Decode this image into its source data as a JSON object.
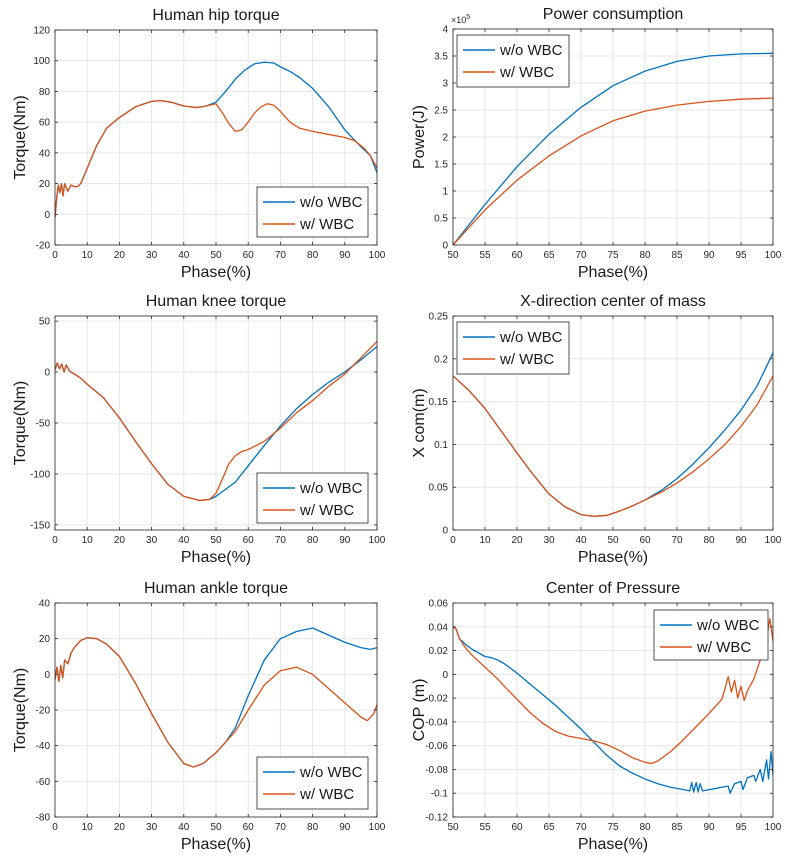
{
  "colors": {
    "wo": "#0072BD",
    "w": "#D95319",
    "grid": "#e6e6e6",
    "axis": "#262626"
  },
  "chart_data": [
    {
      "type": "line",
      "title": "Human hip torque",
      "xlabel": "Phase(%)",
      "ylabel": "Torque(Nm)",
      "xlim": [
        0,
        100
      ],
      "ylim": [
        -20,
        120
      ],
      "xticks": [
        0,
        10,
        20,
        30,
        40,
        50,
        60,
        70,
        80,
        90,
        100
      ],
      "yticks": [
        -20,
        0,
        20,
        40,
        60,
        80,
        100,
        120
      ],
      "legend_pos": "bottom-right",
      "series": [
        {
          "name": "w/o WBC",
          "key": "wo",
          "x": [
            0,
            0.5,
            1,
            1.5,
            2,
            2.5,
            3,
            4,
            5,
            6,
            7,
            8,
            10,
            13,
            16,
            20,
            25,
            30,
            33,
            36,
            40,
            44,
            47,
            50,
            53,
            56,
            59,
            62,
            65,
            68,
            70,
            73,
            76,
            80,
            85,
            90,
            95,
            98,
            100
          ],
          "y": [
            -2,
            10,
            19,
            14,
            20,
            12,
            20,
            15,
            19,
            18,
            18,
            20,
            30,
            45,
            56,
            63,
            70,
            73.5,
            74,
            73,
            70.5,
            69.5,
            70.5,
            73,
            80,
            88,
            94,
            98,
            99,
            98.5,
            96,
            93,
            89,
            82,
            70,
            55,
            44,
            38,
            27
          ]
        },
        {
          "name": "w/ WBC",
          "key": "w",
          "x": [
            0,
            0.5,
            1,
            1.5,
            2,
            2.5,
            3,
            4,
            5,
            6,
            7,
            8,
            10,
            13,
            16,
            20,
            25,
            30,
            33,
            36,
            40,
            44,
            47,
            50,
            52,
            54,
            56,
            58,
            60,
            62,
            64,
            66,
            68,
            70,
            73,
            76,
            80,
            85,
            90,
            93,
            96,
            98,
            100
          ],
          "y": [
            -2,
            10,
            19,
            14,
            20,
            12,
            20,
            15,
            19,
            18,
            18,
            20,
            30,
            45,
            56,
            63,
            70,
            73.5,
            74,
            73,
            70.5,
            69.5,
            70.5,
            72,
            66,
            59,
            54,
            55,
            60,
            66,
            70,
            72,
            71,
            67,
            60,
            56,
            54,
            52,
            50,
            48,
            43,
            38,
            30
          ]
        }
      ]
    },
    {
      "type": "line",
      "title": "Power consumption",
      "xlabel": "Phase(%)",
      "ylabel": "Power(J)",
      "y_exponent": "×10",
      "y_exponent_power": "5",
      "xlim": [
        50,
        100
      ],
      "ylim": [
        0,
        4
      ],
      "xticks": [
        50,
        55,
        60,
        65,
        70,
        75,
        80,
        85,
        90,
        95,
        100
      ],
      "yticks": [
        0,
        0.5,
        1,
        1.5,
        2,
        2.5,
        3,
        3.5,
        4
      ],
      "legend_pos": "top-left",
      "series": [
        {
          "name": "w/o WBC",
          "key": "wo",
          "x": [
            50,
            55,
            60,
            65,
            70,
            75,
            80,
            85,
            90,
            95,
            100
          ],
          "y": [
            0,
            0.75,
            1.45,
            2.05,
            2.55,
            2.95,
            3.22,
            3.4,
            3.5,
            3.54,
            3.55
          ]
        },
        {
          "name": "w/ WBC",
          "key": "w",
          "x": [
            50,
            55,
            60,
            65,
            70,
            75,
            80,
            85,
            90,
            95,
            100
          ],
          "y": [
            0,
            0.65,
            1.2,
            1.65,
            2.02,
            2.3,
            2.48,
            2.59,
            2.66,
            2.7,
            2.72
          ]
        }
      ]
    },
    {
      "type": "line",
      "title": "Human knee torque",
      "xlabel": "Phase(%)",
      "ylabel": "Torque(Nm)",
      "xlim": [
        0,
        100
      ],
      "ylim": [
        -155,
        55
      ],
      "xticks": [
        0,
        10,
        20,
        30,
        40,
        50,
        60,
        70,
        80,
        90,
        100
      ],
      "yticks": [
        -150,
        -100,
        -50,
        0,
        50
      ],
      "legend_pos": "bottom-right",
      "series": [
        {
          "name": "w/o WBC",
          "key": "wo",
          "x": [
            0,
            0.7,
            1.4,
            2.1,
            2.8,
            3.5,
            4.5,
            6,
            8,
            10,
            15,
            20,
            25,
            30,
            35,
            40,
            45,
            48,
            50,
            53,
            56,
            60,
            65,
            70,
            75,
            80,
            85,
            90,
            95,
            100
          ],
          "y": [
            2,
            9,
            3,
            8,
            0,
            7,
            1,
            -2,
            -6,
            -12,
            -25,
            -45,
            -68,
            -90,
            -110,
            -122,
            -126,
            -125,
            -122,
            -115,
            -108,
            -92,
            -72,
            -53,
            -36,
            -22,
            -10,
            0,
            12,
            25
          ]
        },
        {
          "name": "w/ WBC",
          "key": "w",
          "x": [
            0,
            0.7,
            1.4,
            2.1,
            2.8,
            3.5,
            4.5,
            6,
            8,
            10,
            15,
            20,
            25,
            30,
            35,
            40,
            45,
            48,
            50,
            52,
            54,
            56,
            58,
            60,
            65,
            70,
            75,
            80,
            85,
            90,
            95,
            100
          ],
          "y": [
            2,
            9,
            3,
            8,
            0,
            7,
            1,
            -2,
            -6,
            -12,
            -25,
            -45,
            -68,
            -90,
            -110,
            -122,
            -126,
            -125,
            -119,
            -105,
            -90,
            -82,
            -78,
            -76,
            -68,
            -55,
            -40,
            -28,
            -14,
            -2,
            14,
            30
          ]
        }
      ]
    },
    {
      "type": "line",
      "title": "X-direction center of mass",
      "xlabel": "Phase(%)",
      "ylabel": "X com(m)",
      "xlim": [
        0,
        100
      ],
      "ylim": [
        0,
        0.25
      ],
      "xticks": [
        0,
        10,
        20,
        30,
        40,
        50,
        60,
        70,
        80,
        90,
        100
      ],
      "yticks": [
        0,
        0.05,
        0.1,
        0.15,
        0.2,
        0.25
      ],
      "legend_pos": "top-left",
      "series": [
        {
          "name": "w/o WBC",
          "key": "wo",
          "x": [
            0,
            5,
            10,
            15,
            20,
            25,
            30,
            35,
            40,
            44,
            48,
            52,
            56,
            60,
            65,
            70,
            75,
            80,
            85,
            90,
            95,
            100
          ],
          "y": [
            0.18,
            0.163,
            0.142,
            0.116,
            0.09,
            0.065,
            0.042,
            0.027,
            0.018,
            0.016,
            0.017,
            0.022,
            0.028,
            0.035,
            0.046,
            0.06,
            0.077,
            0.096,
            0.117,
            0.14,
            0.168,
            0.207
          ]
        },
        {
          "name": "w/ WBC",
          "key": "w",
          "x": [
            0,
            5,
            10,
            15,
            20,
            25,
            30,
            35,
            40,
            44,
            48,
            52,
            56,
            60,
            65,
            70,
            75,
            80,
            85,
            90,
            95,
            100
          ],
          "y": [
            0.18,
            0.163,
            0.142,
            0.116,
            0.09,
            0.065,
            0.042,
            0.027,
            0.018,
            0.016,
            0.017,
            0.022,
            0.028,
            0.035,
            0.044,
            0.055,
            0.068,
            0.083,
            0.1,
            0.121,
            0.146,
            0.18
          ]
        }
      ]
    },
    {
      "type": "line",
      "title": "Human ankle torque",
      "xlabel": "Phase(%)",
      "ylabel": "Torque(Nm)",
      "xlim": [
        0,
        100
      ],
      "ylim": [
        -80,
        40
      ],
      "xticks": [
        0,
        10,
        20,
        30,
        40,
        50,
        60,
        70,
        80,
        90,
        100
      ],
      "yticks": [
        -80,
        -60,
        -40,
        -20,
        0,
        20,
        40
      ],
      "legend_pos": "bottom-right",
      "series": [
        {
          "name": "w/o WBC",
          "key": "wo",
          "x": [
            0,
            0.6,
            1.2,
            1.8,
            2.4,
            3,
            4,
            5,
            6,
            8,
            10,
            13,
            16,
            20,
            25,
            30,
            35,
            40,
            43,
            46,
            50,
            53,
            56,
            60,
            65,
            70,
            75,
            80,
            85,
            90,
            95,
            98,
            100
          ],
          "y": [
            -3,
            4,
            -4,
            5,
            -2,
            8,
            6,
            12,
            15,
            19,
            20.5,
            20,
            17,
            10,
            -5,
            -22,
            -38,
            -50,
            -52,
            -50,
            -44,
            -38,
            -30,
            -12,
            8,
            20,
            24,
            26,
            22,
            18,
            15,
            14,
            15
          ]
        },
        {
          "name": "w/ WBC",
          "key": "w",
          "x": [
            0,
            0.6,
            1.2,
            1.8,
            2.4,
            3,
            4,
            5,
            6,
            8,
            10,
            13,
            16,
            20,
            25,
            30,
            35,
            40,
            43,
            46,
            50,
            53,
            56,
            60,
            65,
            70,
            75,
            80,
            85,
            90,
            95,
            97,
            99,
            100
          ],
          "y": [
            -3,
            4,
            -4,
            5,
            -2,
            8,
            6,
            12,
            15,
            19,
            20.5,
            20,
            17,
            10,
            -5,
            -22,
            -38,
            -50,
            -52,
            -50,
            -44,
            -38,
            -32,
            -20,
            -6,
            2,
            4,
            0,
            -8,
            -16,
            -24,
            -26,
            -22,
            -17
          ]
        }
      ]
    },
    {
      "type": "line",
      "title": "Center of Pressure",
      "xlabel": "Phase(%)",
      "ylabel": "COP (m)",
      "xlim": [
        50,
        100
      ],
      "ylim": [
        -0.12,
        0.06
      ],
      "xticks": [
        50,
        55,
        60,
        65,
        70,
        75,
        80,
        85,
        90,
        95,
        100
      ],
      "yticks": [
        -0.12,
        -0.1,
        -0.08,
        -0.06,
        -0.04,
        -0.02,
        0,
        0.02,
        0.04,
        0.06
      ],
      "legend_pos": "top-right",
      "series": [
        {
          "name": "w/o WBC",
          "key": "wo",
          "x": [
            50,
            50.5,
            51,
            52,
            53,
            54,
            55,
            56,
            57,
            58,
            60,
            62,
            64,
            66,
            68,
            70,
            72,
            74,
            76,
            78,
            80,
            82,
            84,
            86,
            87,
            87.3,
            87.6,
            88,
            88.3,
            88.6,
            89,
            90,
            91,
            92,
            93,
            93.3,
            94,
            95,
            95.3,
            96,
            97,
            97.3,
            98,
            98.4,
            99,
            99.3,
            99.7,
            100
          ],
          "y": [
            0.04,
            0.038,
            0.03,
            0.025,
            0.021,
            0.018,
            0.015,
            0.014,
            0.012,
            0.009,
            0.001,
            -0.008,
            -0.017,
            -0.026,
            -0.036,
            -0.046,
            -0.057,
            -0.068,
            -0.077,
            -0.083,
            -0.088,
            -0.092,
            -0.095,
            -0.097,
            -0.098,
            -0.091,
            -0.099,
            -0.091,
            -0.099,
            -0.092,
            -0.098,
            -0.097,
            -0.096,
            -0.095,
            -0.094,
            -0.1,
            -0.092,
            -0.09,
            -0.097,
            -0.087,
            -0.085,
            -0.09,
            -0.08,
            -0.09,
            -0.072,
            -0.088,
            -0.065,
            -0.085
          ]
        },
        {
          "name": "w/ WBC",
          "key": "w",
          "x": [
            50,
            50.5,
            51,
            52,
            53,
            54,
            55,
            56,
            57,
            58,
            60,
            62,
            64,
            66,
            68,
            70,
            72,
            74,
            76,
            78,
            80,
            81,
            82,
            84,
            86,
            88,
            90,
            92,
            92.5,
            93,
            93.5,
            94,
            94.5,
            95,
            95.5,
            96,
            97,
            98,
            99,
            99.5,
            100
          ],
          "y": [
            0.04,
            0.038,
            0.03,
            0.022,
            0.016,
            0.011,
            0.006,
            0.001,
            -0.004,
            -0.01,
            -0.021,
            -0.032,
            -0.041,
            -0.048,
            -0.052,
            -0.054,
            -0.056,
            -0.059,
            -0.064,
            -0.07,
            -0.074,
            -0.075,
            -0.073,
            -0.065,
            -0.055,
            -0.044,
            -0.033,
            -0.021,
            -0.012,
            -0.002,
            -0.015,
            -0.005,
            -0.02,
            -0.01,
            -0.022,
            -0.014,
            -0.004,
            0.012,
            0.03,
            0.047,
            0.028
          ]
        }
      ]
    }
  ]
}
